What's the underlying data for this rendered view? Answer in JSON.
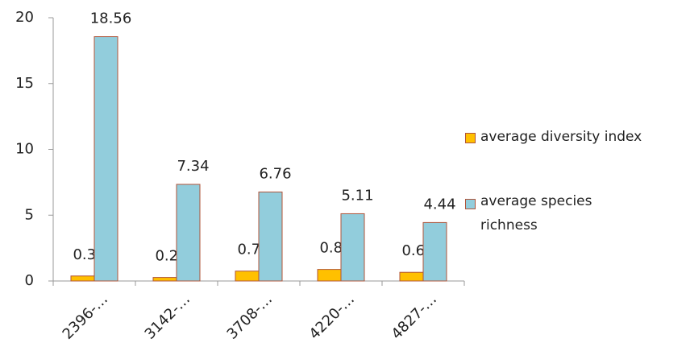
{
  "chart_data": {
    "type": "bar",
    "categories": [
      "2396-…",
      "3142-…",
      "3708-…",
      "4220-…",
      "4827-…"
    ],
    "series": [
      {
        "name": "average diversity index",
        "color": "#FFC000",
        "values": [
          0.38,
          0.27,
          0.75,
          0.88,
          0.66
        ]
      },
      {
        "name": "average species richness",
        "color": "#92CDDC",
        "values": [
          18.56,
          7.34,
          6.76,
          5.11,
          4.44
        ]
      }
    ],
    "ylim": [
      0,
      20
    ],
    "yticks": [
      0,
      5,
      10,
      15,
      20
    ],
    "grid": false,
    "legend": "right"
  }
}
